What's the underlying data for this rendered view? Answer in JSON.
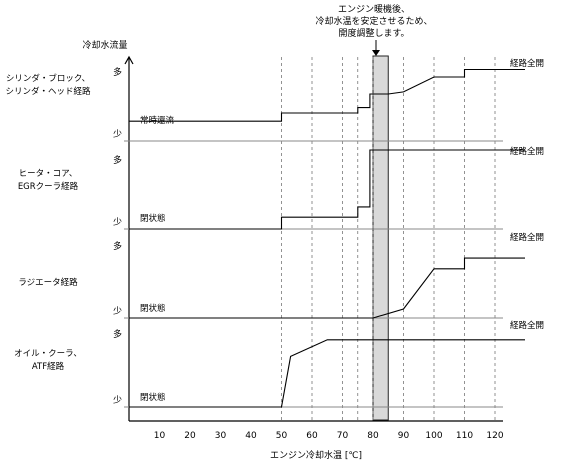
{
  "title_note": [
    "エンジン暖機後、",
    "冷却水温を安定させるため、",
    "開度調整します。"
  ],
  "y_axis_label": "冷却水流量",
  "x_axis_label": "エンジン冷却水温 [℃]",
  "level_high": "多",
  "level_low": "少",
  "end_label": "経路全開",
  "x_ticks": [
    "10",
    "20",
    "30",
    "40",
    "50",
    "60",
    "70",
    "80",
    "90",
    "100",
    "110",
    "120"
  ],
  "rows": [
    {
      "name_lines": [
        "シリンダ・ブロック、",
        "シリンダ・ヘッド経路"
      ],
      "state_label": "常時還流"
    },
    {
      "name_lines": [
        "ヒータ・コア、",
        "EGRクーラ経路"
      ],
      "state_label": "閉状態"
    },
    {
      "name_lines": [
        "ラジエータ経路"
      ],
      "state_label": "閉状態"
    },
    {
      "name_lines": [
        "オイル・クーラ、",
        "ATF経路"
      ],
      "state_label": "閉状態"
    }
  ],
  "chart_data": {
    "type": "line",
    "x_range": [
      0,
      125
    ],
    "shaded_band": [
      80,
      85
    ],
    "series": [
      {
        "name": "シリンダ・ブロック、シリンダ・ヘッド経路",
        "points": [
          [
            0,
            0.13
          ],
          [
            50,
            0.13
          ],
          [
            50,
            0.25
          ],
          [
            75,
            0.25
          ],
          [
            75,
            0.33
          ],
          [
            79,
            0.33
          ],
          [
            79,
            0.53
          ],
          [
            85,
            0.53
          ],
          [
            90,
            0.56
          ],
          [
            100,
            0.78
          ],
          [
            110,
            0.78
          ],
          [
            110,
            0.89
          ],
          [
            120,
            0.89
          ]
        ]
      },
      {
        "name": "ヒータ・コア、EGRクーラ経路",
        "points": [
          [
            0,
            0.0
          ],
          [
            50,
            0.0
          ],
          [
            50,
            0.15
          ],
          [
            75,
            0.15
          ],
          [
            75,
            0.28
          ],
          [
            79,
            0.28
          ],
          [
            79,
            1.0
          ],
          [
            120,
            1.0
          ]
        ]
      },
      {
        "name": "ラジエータ経路",
        "points": [
          [
            0,
            0.0
          ],
          [
            80,
            0.0
          ],
          [
            90,
            0.11
          ],
          [
            100,
            0.6
          ],
          [
            110,
            0.6
          ],
          [
            110,
            0.73
          ],
          [
            120,
            0.73
          ]
        ]
      },
      {
        "name": "オイル・クーラ、ATF経路",
        "points": [
          [
            0,
            0.0
          ],
          [
            50,
            0.0
          ],
          [
            53,
            0.61
          ],
          [
            65,
            0.81
          ],
          [
            120,
            0.81
          ]
        ]
      }
    ]
  }
}
